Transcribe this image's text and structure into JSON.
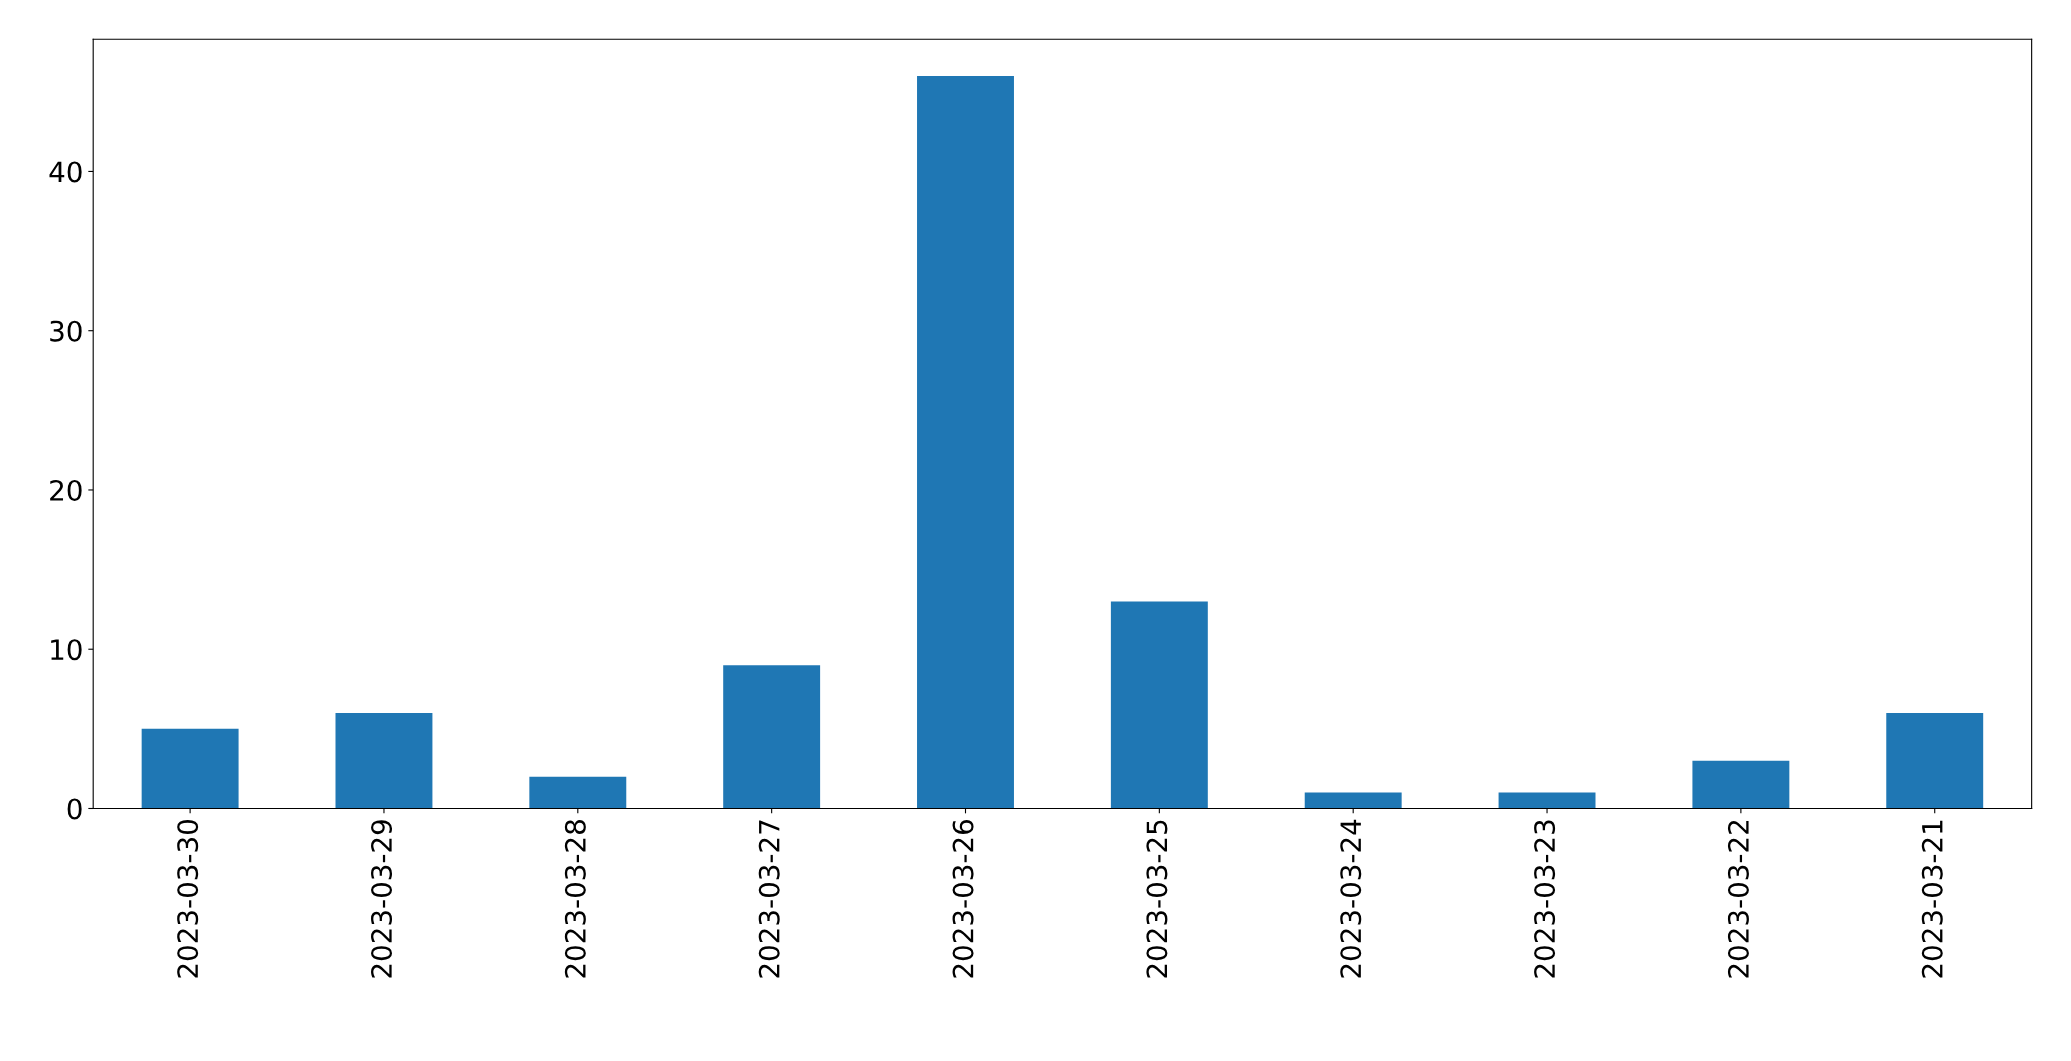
{
  "chart_data": {
    "type": "bar",
    "categories": [
      "2023-03-30",
      "2023-03-29",
      "2023-03-28",
      "2023-03-27",
      "2023-03-26",
      "2023-03-25",
      "2023-03-24",
      "2023-03-23",
      "2023-03-22",
      "2023-03-21"
    ],
    "values": [
      5,
      6,
      2,
      9,
      46,
      13,
      1,
      1,
      3,
      6
    ],
    "color": "#1f77b4",
    "ylim": [
      0,
      48.3
    ],
    "yticks": [
      0,
      10,
      20,
      30,
      40
    ],
    "grid": false,
    "legend": false
  }
}
